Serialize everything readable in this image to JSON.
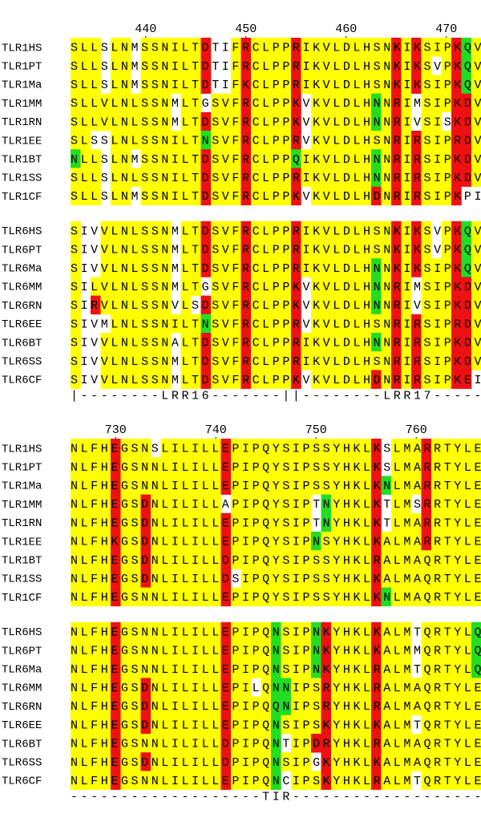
{
  "blocks": [
    {
      "ruler": [
        440,
        450,
        460,
        470
      ],
      "groups": [
        {
          "rows": [
            {
              "name": "TLR1HS",
              "seq": "SLLSLNMSSNILTDTIFRCLPPRIKVLDLHSNKIKSIPKQV"
            },
            {
              "name": "TLR1PT",
              "seq": "SLLSLNMSSNILTDTIFRCLPPRIKVLDLHSNKIKSVPKQV"
            },
            {
              "name": "TLR1Ma",
              "seq": "SLLSLNMSSNILTDTIFKCLPPRIKVLDLHSNKIKSIPKQV"
            },
            {
              "name": "TLR1MM",
              "seq": "SLLVLNLSSNMLTGSVFRCLPPKVKVLDLHNNRIMSIPKDV"
            },
            {
              "name": "TLR1RN",
              "seq": "SLLVLNLSSNMLTDSVFRCLPPKVKVLDLHNNRIVSISKDV"
            },
            {
              "name": "TLR1EE",
              "seq": "SLSSLNLSSNILTNSVFRCLPPRVKVLDLHSNRIRSIPRDV"
            },
            {
              "name": "TLR1BT",
              "seq": "NLLSLNMSSNILTDSVFRCLPPQIKVLDLHNNRIRSIPKDV"
            },
            {
              "name": "TLR1SS",
              "seq": "SLLSLNLSSNILTDSVFRCLPPRIKVLDLHNNRIRSIPKDV"
            },
            {
              "name": "TLR1CF",
              "seq": "SLLSLNMSSNILTDSVFRCLPPKVKVLDLHDNRIRSIPKPI"
            }
          ]
        },
        {
          "rows": [
            {
              "name": "TLR6HS",
              "seq": "SIVVLNLSSNMLTDSVFRCLPPRIKVLDLHSNKIKSVPKQV"
            },
            {
              "name": "TLR6PT",
              "seq": "SIVVLNLSSNMLTDSVFRCLPPRIKVLDLHSNKIKSVPKQV"
            },
            {
              "name": "TLR6Ma",
              "seq": "SIVVLNLSSNMLTDSVFRCLPPRIKVLDLHNNKIKSIPKQV"
            },
            {
              "name": "TLR6MM",
              "seq": "SILVLNLSSNMLTGSVFRCLPPKVKVLDLHNNRIMSIPKDV"
            },
            {
              "name": "TLR6RN",
              "seq": "SIRVLNLSSNVLSDSVFRCLPPKVKVLDLHNNRIVSIPKDV"
            },
            {
              "name": "TLR6EE",
              "seq": "SIVMLNLSSNILTNSVFRCLPPRVKVLDLHSNRIRSIPRDV"
            },
            {
              "name": "TLR6BT",
              "seq": "SIVVLNLSSNALTDSVFRCLPPRIKVLDLHNNRIRSIPKDV"
            },
            {
              "name": "TLR6SS",
              "seq": "SIVVLNLSSNMLTDSVFRCLPPRIKVLDLHSNRIRSIPKDV"
            },
            {
              "name": "TLR6CF",
              "seq": "SIVVLNLSSNMLTDSVFRCLPPKVKVLDLHDNRIRSIPKEI"
            }
          ]
        }
      ],
      "annotation": "|--------LRR16-------||--------LRR17-----"
    },
    {
      "ruler": [
        730,
        740,
        750,
        760
      ],
      "groups": [
        {
          "rows": [
            {
              "name": "TLR1HS",
              "seq": "NLFHEGSNSLILILLEPIPQYSIPSSYHKLKSLMARRTYLE"
            },
            {
              "name": "TLR1PT",
              "seq": "NLFHEGSNNLILILLEPIPQYSIPSSYHKLKSLMARRTYLE"
            },
            {
              "name": "TLR1Ma",
              "seq": "NLFHEGSNNLILILLEPIPQYSIPSSYHKLKNLMARRTYLE"
            },
            {
              "name": "TLR1MM",
              "seq": "NLFHEGSDNLILILLAPIPQYSIPTNYHKLKTLMSRRTYLE"
            },
            {
              "name": "TLR1RN",
              "seq": "NLFHEGSDNLILILLEPIPQYSIPTNYHKLKTLMARRTYLE"
            },
            {
              "name": "TLR1EE",
              "seq": "NLFHKGSDNLILILLEPIPQYSIPNSYHKLKALMARRTYLE"
            },
            {
              "name": "TLR1BT",
              "seq": "NLFHEGSDNLILILLDPIPQYSIPSSYHKLRALMAQRTYLE"
            },
            {
              "name": "TLR1SS",
              "seq": "NLFHEGSDNLILILLDSIPQYSIPSSYHKLKALMAQRTYLE"
            },
            {
              "name": "TLR1CF",
              "seq": "NLFHEGSNNLILILLEPIPQYSIPSSYHKLKNLMAQRTYLE"
            }
          ]
        },
        {
          "rows": [
            {
              "name": "TLR6HS",
              "seq": "NLFHEGSNNLILILLEPIPQNSIPNKYHKLKALMTQRTYLQ"
            },
            {
              "name": "TLR6PT",
              "seq": "NLFHEGSNNLILILLEPIPQNSIPNKYHKLKALMMQRTYLQ"
            },
            {
              "name": "TLR6Ma",
              "seq": "NLFHEGSNNLILILLEPIPQNSIPNKYHKLRALMTQRTYLQ"
            },
            {
              "name": "TLR6MM",
              "seq": "NLFHEGSDNLILILLEPILQNNIPSRYHKLRALMAQRTYLE"
            },
            {
              "name": "TLR6RN",
              "seq": "NLFHEGSDNLILILLEPIPQQNIPSRYHKLRALMAQRTYLE"
            },
            {
              "name": "TLR6EE",
              "seq": "NLFHEGSDNLILILLEPIPQNSIPSKYHKLKALMTQRTYLE"
            },
            {
              "name": "TLR6BT",
              "seq": "NLFHEGSNNLILILLDPIPQNTIPDRYHKLRALMAQRTYLE"
            },
            {
              "name": "TLR6SS",
              "seq": "NLFHEGSDNLILILLDPIPQNSIPGKYHKLKALMAQRTYLE"
            },
            {
              "name": "TLR6CF",
              "seq": "NLFHEGSNNLILILLEPIPQNCIPSKYHKLRALMTQRTYLE"
            }
          ]
        }
      ],
      "annotation": "-------------------TIR-------------------"
    }
  ]
}
